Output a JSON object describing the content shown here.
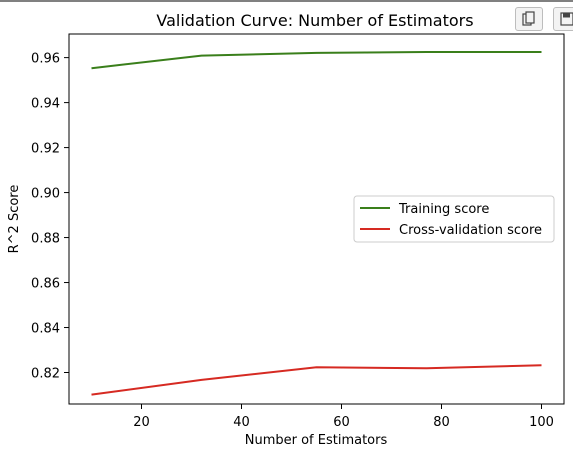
{
  "toolbar": {
    "copy_icon": "copy-icon",
    "save_icon": "save-icon"
  },
  "chart_data": {
    "type": "line",
    "title": "Validation Curve: Number of Estimators",
    "xlabel": "Number of Estimators",
    "ylabel": "R^2 Score",
    "x": [
      10,
      32,
      55,
      77,
      100
    ],
    "xlim": [
      5.5,
      104.5
    ],
    "ylim": [
      0.806,
      0.9705
    ],
    "xticks": [
      20,
      40,
      60,
      80,
      100
    ],
    "yticks": [
      0.82,
      0.84,
      0.86,
      0.88,
      0.9,
      0.92,
      0.94,
      0.96
    ],
    "ytick_labels": [
      "0.82",
      "0.84",
      "0.86",
      "0.88",
      "0.90",
      "0.92",
      "0.94",
      "0.96"
    ],
    "grid": false,
    "legend_position": "center-right",
    "series": [
      {
        "name": "Training score",
        "color": "#3a7f1b",
        "values": [
          0.9553,
          0.9609,
          0.9621,
          0.9625,
          0.9625
        ]
      },
      {
        "name": "Cross-validation score",
        "color": "#d62a22",
        "values": [
          0.8102,
          0.8167,
          0.8223,
          0.8219,
          0.8232
        ]
      }
    ]
  }
}
